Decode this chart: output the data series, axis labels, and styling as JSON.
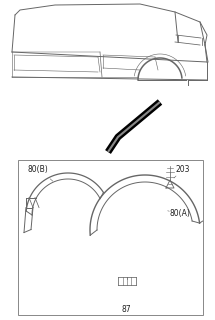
{
  "bg_color": "#ffffff",
  "line_color": "#666666",
  "dark_color": "#111111",
  "labels": {
    "80B": "80(B)",
    "203": "203",
    "80A": "80(A)",
    "87": "87"
  },
  "figsize": [
    2.15,
    3.2
  ],
  "dpi": 100
}
